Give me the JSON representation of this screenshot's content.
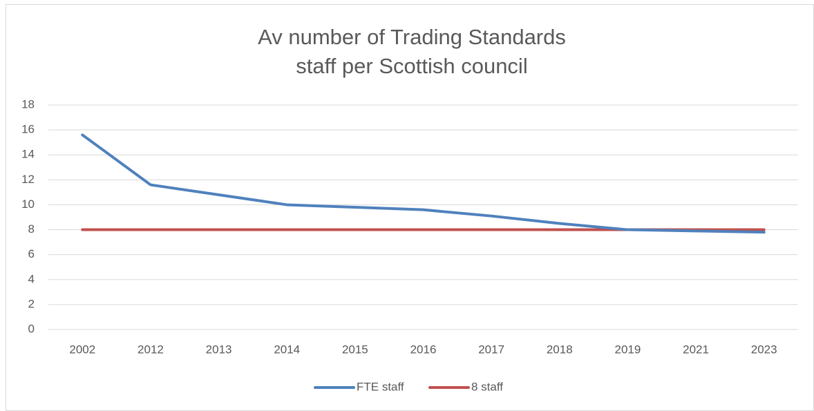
{
  "chart_data": {
    "type": "line",
    "title": [
      "Av number of Trading Standards",
      "staff per Scottish council"
    ],
    "categories": [
      "2002",
      "2012",
      "2013",
      "2014",
      "2015",
      "2016",
      "2017",
      "2018",
      "2019",
      "2021",
      "2023"
    ],
    "series": [
      {
        "name": "FTE staff",
        "color": "#4f81bd",
        "values": [
          15.6,
          11.6,
          10.8,
          10.0,
          9.8,
          9.6,
          9.1,
          8.5,
          8.0,
          7.9,
          7.8
        ]
      },
      {
        "name": "8 staff",
        "color": "#c0504d",
        "values": [
          8,
          8,
          8,
          8,
          8,
          8,
          8,
          8,
          8,
          8,
          8
        ]
      }
    ],
    "ylim": [
      0,
      18
    ],
    "yticks": [
      0,
      2,
      4,
      6,
      8,
      10,
      12,
      14,
      16,
      18
    ],
    "grid": true,
    "legend": "bottom"
  }
}
